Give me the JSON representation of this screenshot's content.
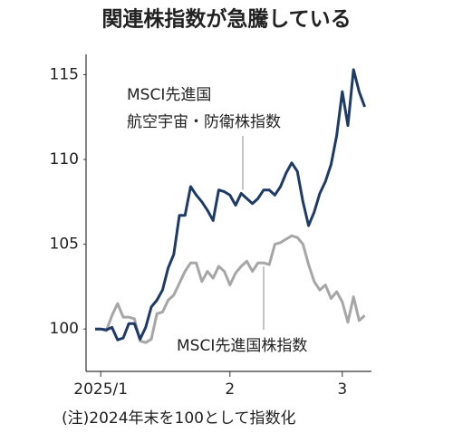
{
  "chart_data": {
    "type": "line",
    "title": "関連株指数が急騰している",
    "note": "(注)2024年末を100として指数化",
    "categories": [
      null,
      "2025/1",
      null,
      null,
      null,
      null,
      null,
      null,
      null,
      null,
      null,
      null,
      null,
      null,
      null,
      null,
      null,
      null,
      null,
      null,
      null,
      null,
      null,
      null,
      "2",
      null,
      null,
      null,
      null,
      null,
      null,
      null,
      null,
      null,
      null,
      null,
      null,
      null,
      null,
      null,
      null,
      null,
      null,
      null,
      "3",
      null,
      null,
      null,
      null
    ],
    "series": [
      {
        "color": "#1e3a66",
        "values": [
          100,
          100,
          99.95,
          100.1,
          99.36,
          99.47,
          100.32,
          100.32,
          99.4,
          100.1,
          101.3,
          101.7,
          102.3,
          103.6,
          104.4,
          106.7,
          106.7,
          108.4,
          107.9,
          107.5,
          107.0,
          106.4,
          108.2,
          108.1,
          107.9,
          107.3,
          108.0,
          107.7,
          107.4,
          107.7,
          108.2,
          108.2,
          107.9,
          108.4,
          109.2,
          109.8,
          109.3,
          107.5,
          106.1,
          106.9,
          108.0,
          108.7,
          109.7,
          111.4,
          114.0,
          112.0,
          115.3,
          114.0,
          113.1
        ]
      },
      {
        "color": "#a6a6a6",
        "values": [
          100,
          100,
          99.9,
          100.8,
          101.5,
          100.7,
          100.7,
          100.6,
          99.3,
          99.2,
          99.4,
          100.9,
          101.0,
          101.7,
          102.0,
          102.7,
          103.4,
          103.9,
          103.9,
          102.8,
          103.4,
          103.0,
          103.7,
          103.4,
          102.6,
          103.3,
          103.7,
          104.0,
          103.4,
          103.9,
          103.9,
          103.8,
          105.0,
          105.1,
          105.3,
          105.5,
          105.4,
          105.0,
          103.8,
          102.8,
          102.3,
          102.6,
          101.8,
          102.2,
          101.6,
          100.4,
          101.9,
          100.5,
          100.8
        ]
      }
    ],
    "annotations": [
      {
        "series": 0,
        "text": [
          "MSCI先進国",
          "航空宇宙・防衛株指数"
        ]
      },
      {
        "series": 1,
        "text": [
          "MSCI先進国株指数"
        ]
      }
    ],
    "ylim": [
      97.5,
      116.2
    ],
    "yticks": [
      100,
      105,
      110,
      115
    ],
    "grid": false
  }
}
